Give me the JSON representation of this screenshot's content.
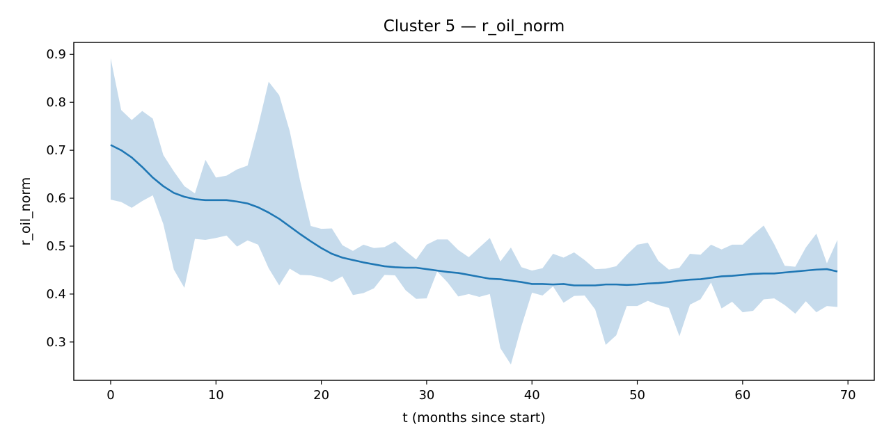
{
  "chart_data": {
    "type": "line",
    "title": "Cluster 5 — r_oil_norm",
    "xlabel": "t (months since start)",
    "ylabel": "r_oil_norm",
    "xlim": [
      -3.5,
      72.5
    ],
    "ylim": [
      0.22,
      0.925
    ],
    "xticks": [
      0,
      10,
      20,
      30,
      40,
      50,
      60,
      70
    ],
    "yticks": [
      0.3,
      0.4,
      0.5,
      0.6,
      0.7,
      0.8,
      0.9
    ],
    "grid": false,
    "legend": "none",
    "colors": {
      "line": "#1f77b4",
      "band": "#c6dbec"
    },
    "series": [
      {
        "kind": "mean-line",
        "x": [
          0,
          1,
          2,
          3,
          4,
          5,
          6,
          7,
          8,
          9,
          10,
          11,
          12,
          13,
          14,
          15,
          16,
          17,
          18,
          19,
          20,
          21,
          22,
          23,
          24,
          25,
          26,
          27,
          28,
          29,
          30,
          31,
          32,
          33,
          34,
          35,
          36,
          37,
          38,
          39,
          40,
          41,
          42,
          43,
          44,
          45,
          46,
          47,
          48,
          49,
          50,
          51,
          52,
          53,
          54,
          55,
          56,
          57,
          58,
          59,
          60,
          61,
          62,
          63,
          64,
          65,
          66,
          67,
          68,
          69
        ],
        "y": [
          0.711,
          0.7,
          0.685,
          0.665,
          0.643,
          0.625,
          0.611,
          0.603,
          0.598,
          0.596,
          0.596,
          0.596,
          0.593,
          0.589,
          0.581,
          0.57,
          0.557,
          0.541,
          0.525,
          0.51,
          0.496,
          0.484,
          0.476,
          0.471,
          0.466,
          0.462,
          0.458,
          0.456,
          0.455,
          0.455,
          0.452,
          0.449,
          0.446,
          0.444,
          0.44,
          0.436,
          0.432,
          0.431,
          0.428,
          0.425,
          0.421,
          0.421,
          0.42,
          0.421,
          0.418,
          0.418,
          0.418,
          0.42,
          0.42,
          0.419,
          0.42,
          0.422,
          0.423,
          0.425,
          0.428,
          0.43,
          0.431,
          0.434,
          0.437,
          0.438,
          0.44,
          0.442,
          0.443,
          0.443,
          0.445,
          0.447,
          0.449,
          0.451,
          0.452,
          0.447
        ]
      },
      {
        "kind": "band",
        "x": [
          0,
          1,
          2,
          3,
          4,
          5,
          6,
          7,
          8,
          9,
          10,
          11,
          12,
          13,
          14,
          15,
          16,
          17,
          18,
          19,
          20,
          21,
          22,
          23,
          24,
          25,
          26,
          27,
          28,
          29,
          30,
          31,
          32,
          33,
          34,
          35,
          36,
          37,
          38,
          39,
          40,
          41,
          42,
          43,
          44,
          45,
          46,
          47,
          48,
          49,
          50,
          51,
          52,
          53,
          54,
          55,
          56,
          57,
          58,
          59,
          60,
          61,
          62,
          63,
          64,
          65,
          66,
          67,
          68,
          69
        ],
        "upper": [
          0.892,
          0.784,
          0.763,
          0.782,
          0.766,
          0.69,
          0.656,
          0.625,
          0.61,
          0.68,
          0.643,
          0.647,
          0.66,
          0.668,
          0.75,
          0.843,
          0.815,
          0.74,
          0.635,
          0.542,
          0.536,
          0.537,
          0.502,
          0.49,
          0.503,
          0.496,
          0.498,
          0.51,
          0.49,
          0.472,
          0.503,
          0.514,
          0.514,
          0.492,
          0.477,
          0.497,
          0.517,
          0.468,
          0.497,
          0.456,
          0.449,
          0.454,
          0.484,
          0.476,
          0.487,
          0.471,
          0.452,
          0.453,
          0.458,
          0.482,
          0.503,
          0.507,
          0.469,
          0.451,
          0.455,
          0.484,
          0.482,
          0.503,
          0.493,
          0.503,
          0.503,
          0.524,
          0.543,
          0.504,
          0.459,
          0.457,
          0.497,
          0.526,
          0.464,
          0.513
        ],
        "lower": [
          0.597,
          0.592,
          0.58,
          0.594,
          0.606,
          0.546,
          0.451,
          0.413,
          0.515,
          0.513,
          0.517,
          0.522,
          0.499,
          0.512,
          0.503,
          0.454,
          0.418,
          0.453,
          0.44,
          0.439,
          0.434,
          0.425,
          0.437,
          0.398,
          0.402,
          0.412,
          0.44,
          0.439,
          0.408,
          0.39,
          0.391,
          0.447,
          0.424,
          0.395,
          0.4,
          0.394,
          0.4,
          0.287,
          0.253,
          0.333,
          0.403,
          0.397,
          0.416,
          0.382,
          0.396,
          0.397,
          0.368,
          0.294,
          0.314,
          0.375,
          0.375,
          0.386,
          0.377,
          0.371,
          0.312,
          0.378,
          0.389,
          0.424,
          0.37,
          0.384,
          0.362,
          0.365,
          0.389,
          0.391,
          0.377,
          0.359,
          0.385,
          0.362,
          0.375,
          0.373
        ]
      }
    ]
  }
}
